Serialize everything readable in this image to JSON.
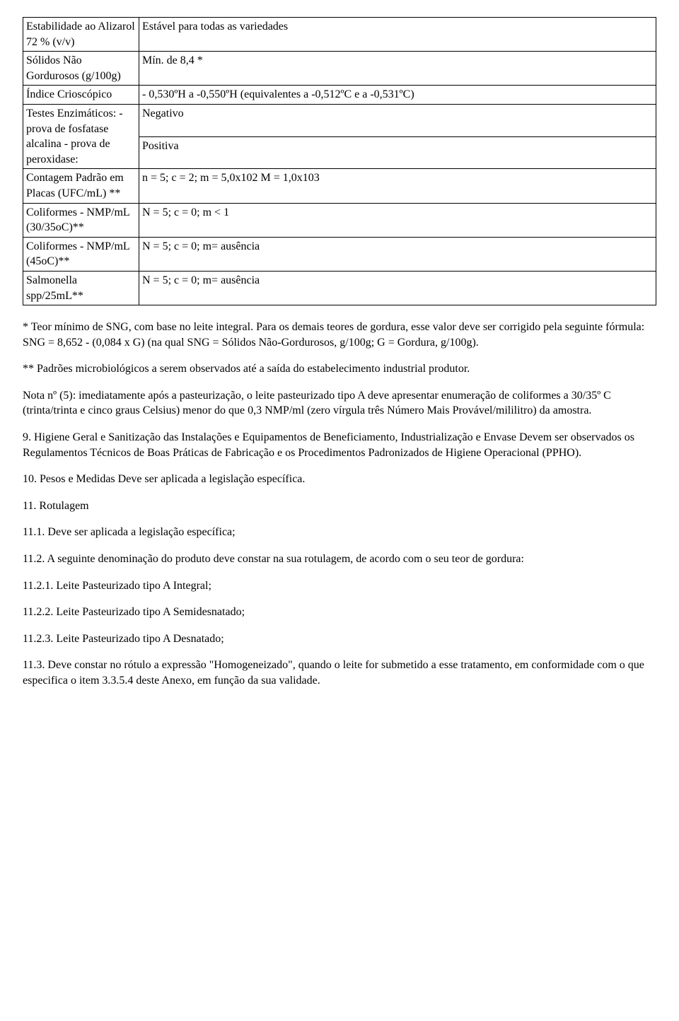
{
  "table": {
    "rows": [
      {
        "label": "Estabilidade ao Alizarol 72 % (v/v)",
        "value": "Estável para todas as variedades"
      },
      {
        "label": "Sólidos Não Gordurosos (g/100g)",
        "value": "Mín. de 8,4 *"
      },
      {
        "label": "Índice Crioscópico",
        "value": "- 0,530ºH a -0,550ºH (equivalentes a -0,512ºC e a -0,531ºC)"
      },
      {
        "label": "Testes Enzimáticos: - prova de fosfatase alcalina - prova de peroxidase:",
        "value_top": "Negativo",
        "value_bottom": "Positiva"
      },
      {
        "label": "Contagem Padrão em Placas (UFC/mL) **",
        "value": "n = 5; c = 2; m = 5,0x102 M = 1,0x103"
      },
      {
        "label": "Coliformes - NMP/mL (30/35oC)**",
        "value": "N = 5; c = 0; m < 1"
      },
      {
        "label": "Coliformes - NMP/mL (45oC)**",
        "value": "N = 5; c = 0; m= ausência"
      },
      {
        "label": "Salmonella spp/25mL**",
        "value": "N = 5; c = 0; m= ausência"
      }
    ]
  },
  "paragraphs": {
    "p1": "* Teor mínimo de SNG, com base no leite integral. Para os demais teores de gordura, esse valor deve ser corrigido pela seguinte fórmula: SNG = 8,652 - (0,084 x G) (na qual SNG = Sólidos Não-Gordurosos, g/100g; G = Gordura, g/100g).",
    "p2": "** Padrões microbiológicos a serem observados até a saída do estabelecimento industrial produtor.",
    "p3": "Nota nº (5): imediatamente após a pasteurização, o leite pasteurizado tipo A deve apresentar enumeração de coliformes a 30/35º C (trinta/trinta e cinco graus Celsius) menor do que 0,3 NMP/ml (zero vírgula três Número Mais Provável/mililitro) da amostra.",
    "p4": "9. Higiene Geral e Sanitização das Instalações e Equipamentos de Beneficiamento, Industrialização e Envase Devem ser observados os Regulamentos Técnicos de Boas Práticas de Fabricação e os Procedimentos Padronizados de Higiene Operacional (PPHO).",
    "p5": "10. Pesos e Medidas Deve ser aplicada a legislação específica.",
    "p6": "11. Rotulagem",
    "p7": "11.1. Deve ser aplicada a legislação específica;",
    "p8": "11.2. A seguinte denominação do produto deve constar na sua rotulagem, de acordo com o seu teor de gordura:",
    "p9": "11.2.1. Leite Pasteurizado tipo A Integral;",
    "p10": "11.2.2. Leite Pasteurizado tipo A Semidesnatado;",
    "p11": "11.2.3. Leite Pasteurizado tipo A Desnatado;",
    "p12": "11.3. Deve constar no rótulo a expressão \"Homogeneizado\", quando o leite for submetido a esse tratamento, em conformidade com o que especifica o item 3.3.5.4 deste Anexo, em função da sua validade."
  }
}
